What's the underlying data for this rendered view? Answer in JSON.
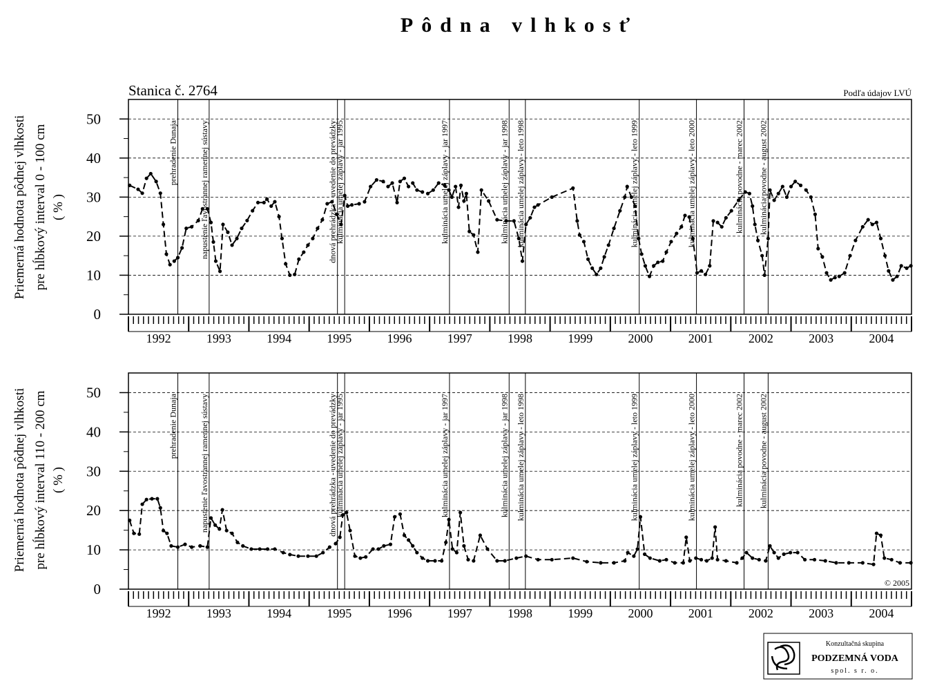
{
  "title": "Pôdna vlhkosť",
  "logo": {
    "line1": "Konzultačná skupina",
    "line2": "PODZEMNÁ VODA",
    "line3": "spol. s r. o."
  },
  "chart_data": [
    {
      "type": "line",
      "annotation": "Stanica č. 2764",
      "source": "Podľa údajov LVÚ",
      "y_label": [
        "Priemerná hodnota pôdnej vlhkosti",
        "pre hĺbkový interval 0 - 100 cm",
        "( % )"
      ],
      "xlim": [
        1992,
        2005
      ],
      "ylim": [
        0,
        55
      ],
      "yticks": [
        0,
        10,
        20,
        30,
        40,
        50
      ],
      "grid": true,
      "xticks": [
        {
          "value": 1992.5,
          "label": "1992"
        },
        {
          "value": 1993.5,
          "label": "1993"
        },
        {
          "value": 1994.5,
          "label": "1994"
        },
        {
          "value": 1995.5,
          "label": "1995"
        },
        {
          "value": 1996.5,
          "label": "1996"
        },
        {
          "value": 1997.5,
          "label": "1997"
        },
        {
          "value": 1998.5,
          "label": "1998"
        },
        {
          "value": 1999.5,
          "label": "1999"
        },
        {
          "value": 2000.5,
          "label": "2000"
        },
        {
          "value": 2001.5,
          "label": "2001"
        },
        {
          "value": 2002.5,
          "label": "2002"
        },
        {
          "value": 2003.5,
          "label": "2003"
        },
        {
          "value": 2004.5,
          "label": "2004"
        }
      ],
      "events": [
        {
          "x": 1992.82,
          "label": "prehradenie Dunaja"
        },
        {
          "x": 1993.34,
          "label": "napustenie ľavostrannej ramennej sústavy"
        },
        {
          "x": 1995.47,
          "label": "dnová prehrádzka - uvedenie do prevádzky"
        },
        {
          "x": 1995.59,
          "label": "kulminácia umelej záplavy - jar 1995"
        },
        {
          "x": 1997.33,
          "label": "kulminácia umelej záplavy - jar 1997"
        },
        {
          "x": 1998.32,
          "label": "kulminácia umelej záplavy - jar 1998"
        },
        {
          "x": 1998.59,
          "label": "kulminácia umelej záplavy - leto 1998"
        },
        {
          "x": 2000.48,
          "label": "kulminácia umelej záplavy - leto 1999"
        },
        {
          "x": 2001.43,
          "label": "kulminácia umelej záplavy - leto 2000"
        },
        {
          "x": 2002.22,
          "label": "kulminácia povodne - marec 2002"
        },
        {
          "x": 2002.62,
          "label": "kulminácia povodne - august 2002"
        }
      ],
      "x": [
        1992.02,
        1992.16,
        1992.23,
        1992.3,
        1992.37,
        1992.46,
        1992.53,
        1992.58,
        1992.63,
        1992.69,
        1992.76,
        1992.82,
        1992.89,
        1992.96,
        1993.05,
        1993.16,
        1993.23,
        1993.31,
        1993.37,
        1993.41,
        1993.45,
        1993.52,
        1993.57,
        1993.65,
        1993.72,
        1993.8,
        1993.88,
        1993.97,
        1994.06,
        1994.15,
        1994.25,
        1994.3,
        1994.37,
        1994.43,
        1994.5,
        1994.55,
        1994.61,
        1994.68,
        1994.76,
        1994.83,
        1994.91,
        1994.98,
        1995.06,
        1995.14,
        1995.22,
        1995.3,
        1995.38,
        1995.46,
        1995.53,
        1995.59,
        1995.64,
        1995.71,
        1995.83,
        1995.92,
        1996.02,
        1996.12,
        1996.23,
        1996.31,
        1996.38,
        1996.46,
        1996.51,
        1996.58,
        1996.65,
        1996.72,
        1996.79,
        1996.88,
        1996.97,
        1997.06,
        1997.15,
        1997.25,
        1997.32,
        1997.37,
        1997.43,
        1997.48,
        1997.52,
        1997.57,
        1997.61,
        1997.66,
        1997.73,
        1997.8,
        1997.86,
        1997.98,
        1998.12,
        1998.27,
        1998.4,
        1998.48,
        1998.54,
        1998.6,
        1998.67,
        1998.74,
        1998.8,
        1999.03,
        1999.38,
        1999.45,
        1999.49,
        1999.56,
        1999.63,
        1999.7,
        1999.77,
        1999.84,
        1999.9,
        1999.97,
        2000.06,
        2000.16,
        2000.24,
        2000.28,
        2000.35,
        2000.41,
        2000.47,
        2000.52,
        2000.58,
        2000.65,
        2000.72,
        2000.79,
        2000.87,
        2000.93,
        2001.01,
        2001.1,
        2001.18,
        2001.24,
        2001.31,
        2001.37,
        2001.44,
        2001.51,
        2001.58,
        2001.65,
        2001.71,
        2001.78,
        2001.85,
        2001.92,
        2002.01,
        2002.13,
        2002.24,
        2002.31,
        2002.36,
        2002.4,
        2002.45,
        2002.52,
        2002.56,
        2002.62,
        2002.65,
        2002.72,
        2002.79,
        2002.86,
        2002.93,
        2003.0,
        2003.07,
        2003.16,
        2003.25,
        2003.33,
        2003.4,
        2003.45,
        2003.52,
        2003.59,
        2003.66,
        2003.73,
        2003.8,
        2003.89,
        2003.98,
        2004.07,
        2004.19,
        2004.28,
        2004.35,
        2004.42,
        2004.49,
        2004.56,
        2004.62,
        2004.69,
        2004.76,
        2004.83,
        2004.92,
        2004.99
      ],
      "series": [
        {
          "color": "#000000",
          "values": [
            33,
            32,
            31,
            34.8,
            36,
            34,
            31,
            23,
            15.4,
            12.7,
            13.6,
            14.5,
            17,
            22,
            22.4,
            24,
            27,
            27,
            23.5,
            18.5,
            13.6,
            11,
            23,
            21,
            17.7,
            19.4,
            22,
            24,
            26.5,
            28.6,
            28.6,
            29.5,
            27.7,
            28.8,
            25,
            19.4,
            12.9,
            10,
            10.2,
            14.1,
            15.9,
            17.7,
            19.4,
            22,
            24.2,
            28.3,
            28.8,
            25.6,
            23,
            30.4,
            27.7,
            28,
            28.3,
            28.8,
            32.7,
            34.4,
            34,
            32.7,
            33.6,
            28.6,
            34,
            34.8,
            32.7,
            33.6,
            31.8,
            31.3,
            30.9,
            31.8,
            33.6,
            33,
            31.8,
            30,
            32.7,
            27.4,
            33,
            29,
            30.9,
            21.2,
            20.3,
            15.9,
            31.8,
            29,
            24.2,
            23.9,
            23.9,
            19.4,
            13.6,
            23,
            24.7,
            27.4,
            28,
            30,
            32.3,
            23.9,
            20.3,
            18.6,
            14.1,
            11.8,
            10.2,
            11.8,
            14.7,
            17.7,
            22,
            26.5,
            30,
            32.7,
            30,
            27.7,
            19.4,
            15.4,
            12.4,
            9.7,
            12.4,
            13.3,
            13.6,
            15.9,
            18.6,
            20.7,
            22.4,
            25.3,
            24.9,
            19.4,
            10.6,
            11.1,
            10.2,
            12.4,
            23.9,
            23.5,
            22.4,
            24.7,
            26.5,
            29.2,
            31.3,
            30.9,
            27.7,
            23,
            18.9,
            15,
            10,
            19.4,
            31.8,
            29.2,
            30.9,
            32.7,
            30,
            32.7,
            34,
            33,
            31.8,
            30,
            25.6,
            16.8,
            14.7,
            10.6,
            8.8,
            9.4,
            9.7,
            10.6,
            15,
            18.9,
            22.4,
            24.2,
            23,
            23.5,
            19.4,
            15,
            11.1,
            8.8,
            9.7,
            12.4,
            11.8,
            12.4
          ]
        }
      ]
    },
    {
      "type": "line",
      "copyright": "© 2005",
      "y_label": [
        "Priemerná hodnota pôdnej vlhkosti",
        "pre hĺbkový interval 110 - 200 cm",
        "( % )"
      ],
      "xlim": [
        1992,
        2005
      ],
      "ylim": [
        0,
        55
      ],
      "yticks": [
        0,
        10,
        20,
        30,
        40,
        50
      ],
      "grid": true,
      "xticks": [
        {
          "value": 1992.5,
          "label": "1992"
        },
        {
          "value": 1993.5,
          "label": "1993"
        },
        {
          "value": 1994.5,
          "label": "1994"
        },
        {
          "value": 1995.5,
          "label": "1995"
        },
        {
          "value": 1996.5,
          "label": "1996"
        },
        {
          "value": 1997.5,
          "label": "1997"
        },
        {
          "value": 1998.5,
          "label": "1998"
        },
        {
          "value": 1999.5,
          "label": "1999"
        },
        {
          "value": 2000.5,
          "label": "2000"
        },
        {
          "value": 2001.5,
          "label": "2001"
        },
        {
          "value": 2002.5,
          "label": "2002"
        },
        {
          "value": 2003.5,
          "label": "2003"
        },
        {
          "value": 2004.5,
          "label": "2004"
        }
      ],
      "events": [
        {
          "x": 1992.82,
          "label": "prehradenie Dunaja"
        },
        {
          "x": 1993.34,
          "label": "napustenie ľavostrannej ramennej sústavy"
        },
        {
          "x": 1995.47,
          "label": "dnová prehrádzka - uvedenie do prevádzky"
        },
        {
          "x": 1995.59,
          "label": "kulminácia umelej záplavy - jar 1995"
        },
        {
          "x": 1997.33,
          "label": "kulminácia umelej záplavy - jar 1997"
        },
        {
          "x": 1998.32,
          "label": "kulminácia umelej záplavy - jar 1998"
        },
        {
          "x": 1998.59,
          "label": "kulminácia umelej záplavy - leto 1998"
        },
        {
          "x": 2000.48,
          "label": "kulminácia umelej záplavy - leto 1999"
        },
        {
          "x": 2001.43,
          "label": "kulminácia umelej záplavy - leto 2000"
        },
        {
          "x": 2002.22,
          "label": "kulminácia povodne - marec 2002"
        },
        {
          "x": 2002.62,
          "label": "kulminácia povodne - august 2002"
        }
      ],
      "x": [
        1992.02,
        1992.09,
        1992.18,
        1992.23,
        1992.3,
        1992.39,
        1992.48,
        1992.53,
        1992.58,
        1992.64,
        1992.71,
        1992.82,
        1992.94,
        1993.05,
        1993.19,
        1993.31,
        1993.37,
        1993.44,
        1993.51,
        1993.56,
        1993.63,
        1993.72,
        1993.81,
        1993.9,
        1994.04,
        1994.18,
        1994.31,
        1994.43,
        1994.57,
        1994.68,
        1994.82,
        1994.98,
        1995.12,
        1995.23,
        1995.34,
        1995.44,
        1995.51,
        1995.56,
        1995.62,
        1995.68,
        1995.76,
        1995.85,
        1995.94,
        1996.06,
        1996.15,
        1996.24,
        1996.35,
        1996.42,
        1996.51,
        1996.58,
        1996.65,
        1996.72,
        1996.79,
        1996.88,
        1996.97,
        1997.09,
        1997.2,
        1997.27,
        1997.32,
        1997.38,
        1997.45,
        1997.51,
        1997.57,
        1997.64,
        1997.73,
        1997.84,
        1997.96,
        1998.12,
        1998.25,
        1998.44,
        1998.6,
        1998.8,
        1999.03,
        1999.38,
        1999.61,
        1999.84,
        2000.06,
        2000.24,
        2000.29,
        2000.39,
        2000.45,
        2000.5,
        2000.57,
        2000.66,
        2000.82,
        2000.93,
        2001.07,
        2001.21,
        2001.26,
        2001.32,
        2001.42,
        2001.51,
        2001.6,
        2001.69,
        2001.74,
        2001.78,
        2001.92,
        2002.1,
        2002.19,
        2002.26,
        2002.36,
        2002.47,
        2002.58,
        2002.65,
        2002.72,
        2002.79,
        2002.88,
        2002.99,
        2003.11,
        2003.23,
        2003.39,
        2003.57,
        2003.75,
        2003.96,
        2004.19,
        2004.37,
        2004.42,
        2004.49,
        2004.55,
        2004.67,
        2004.81,
        2004.99
      ],
      "series": [
        {
          "color": "#000000",
          "values": [
            17.5,
            14.2,
            14,
            21.6,
            22.8,
            23,
            23,
            20.7,
            14.9,
            14.2,
            11,
            10.7,
            11.4,
            10.7,
            11,
            10.7,
            18.1,
            16.3,
            15.3,
            20.2,
            14.9,
            14.2,
            11.9,
            11,
            10.2,
            10.2,
            10.2,
            10.2,
            9.3,
            8.8,
            8.4,
            8.4,
            8.4,
            9.3,
            10.7,
            11.6,
            13.2,
            18.9,
            19.5,
            14.9,
            8.4,
            7.9,
            8.2,
            10.2,
            10.2,
            11,
            11.4,
            18.4,
            19.1,
            13.7,
            12.5,
            11,
            9.3,
            7.9,
            7.2,
            7.2,
            7.2,
            11.9,
            17.7,
            10.2,
            9.3,
            19.5,
            11,
            7.5,
            7.2,
            13.7,
            10.2,
            7.2,
            7.2,
            7.9,
            8.4,
            7.5,
            7.5,
            7.9,
            7,
            6.7,
            6.7,
            7.2,
            9.3,
            8.4,
            10.2,
            18.4,
            8.9,
            7.9,
            7.2,
            7.5,
            6.7,
            6.7,
            13.2,
            7.2,
            7.9,
            7.5,
            7.2,
            7.9,
            15.8,
            7.5,
            7.2,
            6.7,
            7.9,
            9.3,
            7.9,
            7.5,
            7.2,
            11,
            9.3,
            7.9,
            8.9,
            9.3,
            9.3,
            7.5,
            7.5,
            7.2,
            6.7,
            6.7,
            6.7,
            6.3,
            14.2,
            13.7,
            7.9,
            7.5,
            6.7,
            6.7
          ]
        }
      ]
    }
  ]
}
